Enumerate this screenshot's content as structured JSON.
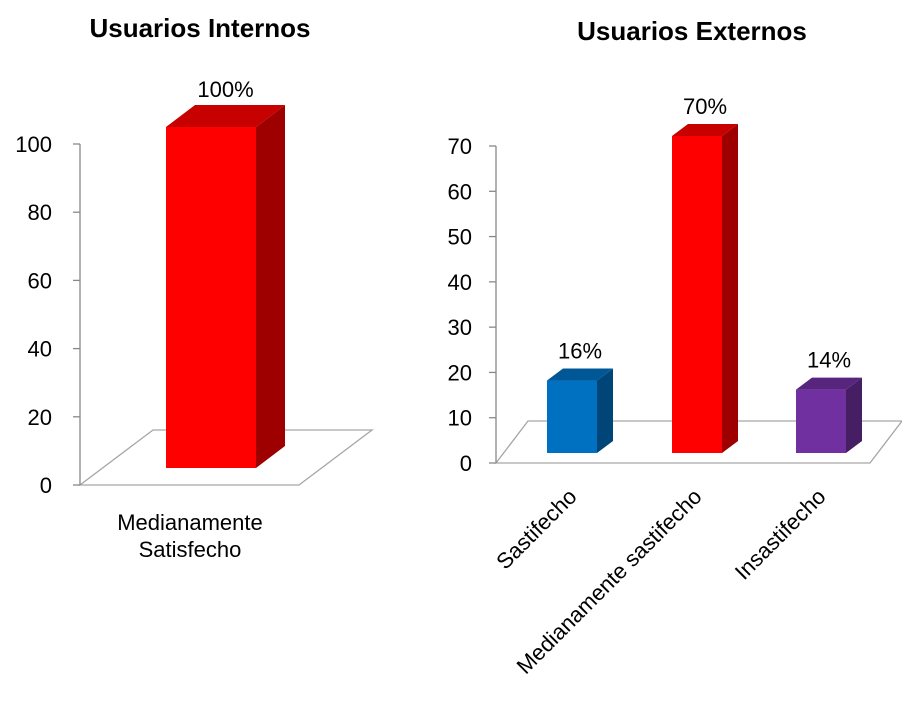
{
  "chart_data": [
    {
      "type": "bar",
      "title": "Usuarios Internos",
      "categories": [
        "Medianamente Satisfecho"
      ],
      "category_lines": [
        [
          "Medianamente",
          "Satisfecho"
        ]
      ],
      "values": [
        100
      ],
      "data_labels": [
        "100%"
      ],
      "colors": [
        "#ff0000"
      ],
      "ylim": [
        0,
        100
      ],
      "yticks": [
        0,
        20,
        40,
        60,
        80,
        100
      ],
      "xlabel": "",
      "ylabel": "",
      "grid": false,
      "legend": "none",
      "style": "3d-bar"
    },
    {
      "type": "bar",
      "title": "Usuarios Externos",
      "categories": [
        "Sastifecho",
        "Medianamente sastifecho",
        "Insastifecho"
      ],
      "values": [
        16,
        70,
        14
      ],
      "data_labels": [
        "16%",
        "70%",
        "14%"
      ],
      "colors": [
        "#0070c0",
        "#ff0000",
        "#7030a0"
      ],
      "ylim": [
        0,
        70
      ],
      "yticks": [
        0,
        10,
        20,
        30,
        40,
        50,
        60,
        70
      ],
      "xlabel": "",
      "ylabel": "",
      "grid": false,
      "legend": "none",
      "style": "3d-bar"
    }
  ]
}
